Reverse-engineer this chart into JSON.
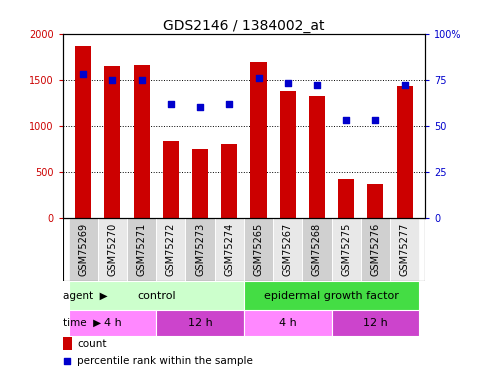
{
  "title": "GDS2146 / 1384002_at",
  "samples": [
    "GSM75269",
    "GSM75270",
    "GSM75271",
    "GSM75272",
    "GSM75273",
    "GSM75274",
    "GSM75265",
    "GSM75267",
    "GSM75268",
    "GSM75275",
    "GSM75276",
    "GSM75277"
  ],
  "counts": [
    1870,
    1650,
    1660,
    840,
    750,
    800,
    1690,
    1380,
    1320,
    420,
    370,
    1430
  ],
  "percentiles": [
    78,
    75,
    75,
    62,
    60,
    62,
    76,
    73,
    72,
    53,
    53,
    72
  ],
  "bar_color": "#cc0000",
  "dot_color": "#0000cc",
  "ylim_left": [
    0,
    2000
  ],
  "ylim_right": [
    0,
    100
  ],
  "yticks_left": [
    0,
    500,
    1000,
    1500,
    2000
  ],
  "yticks_right": [
    0,
    25,
    50,
    75,
    100
  ],
  "ytick_labels_right": [
    "0",
    "25",
    "50",
    "75",
    "100%"
  ],
  "agent_groups": [
    {
      "label": "control",
      "start": 0,
      "end": 6,
      "color": "#ccffcc"
    },
    {
      "label": "epidermal growth factor",
      "start": 6,
      "end": 12,
      "color": "#44dd44"
    }
  ],
  "time_groups": [
    {
      "label": "4 h",
      "start": 0,
      "end": 3,
      "color": "#ff88ff"
    },
    {
      "label": "12 h",
      "start": 3,
      "end": 6,
      "color": "#cc44cc"
    },
    {
      "label": "4 h",
      "start": 6,
      "end": 9,
      "color": "#ff88ff"
    },
    {
      "label": "12 h",
      "start": 9,
      "end": 12,
      "color": "#cc44cc"
    }
  ],
  "xticklabel_bg_colors": [
    "#d0d0d0",
    "#e8e8e8",
    "#d0d0d0",
    "#e8e8e8",
    "#d0d0d0",
    "#e8e8e8",
    "#d0d0d0",
    "#e8e8e8",
    "#d0d0d0",
    "#e8e8e8",
    "#d0d0d0",
    "#e8e8e8"
  ],
  "legend_count_color": "#cc0000",
  "legend_dot_color": "#0000cc",
  "bg_color": "#ffffff",
  "plot_bg_color": "#ffffff",
  "grid_color": "#000000",
  "title_fontsize": 10,
  "tick_fontsize": 7,
  "annotation_fontsize": 8
}
